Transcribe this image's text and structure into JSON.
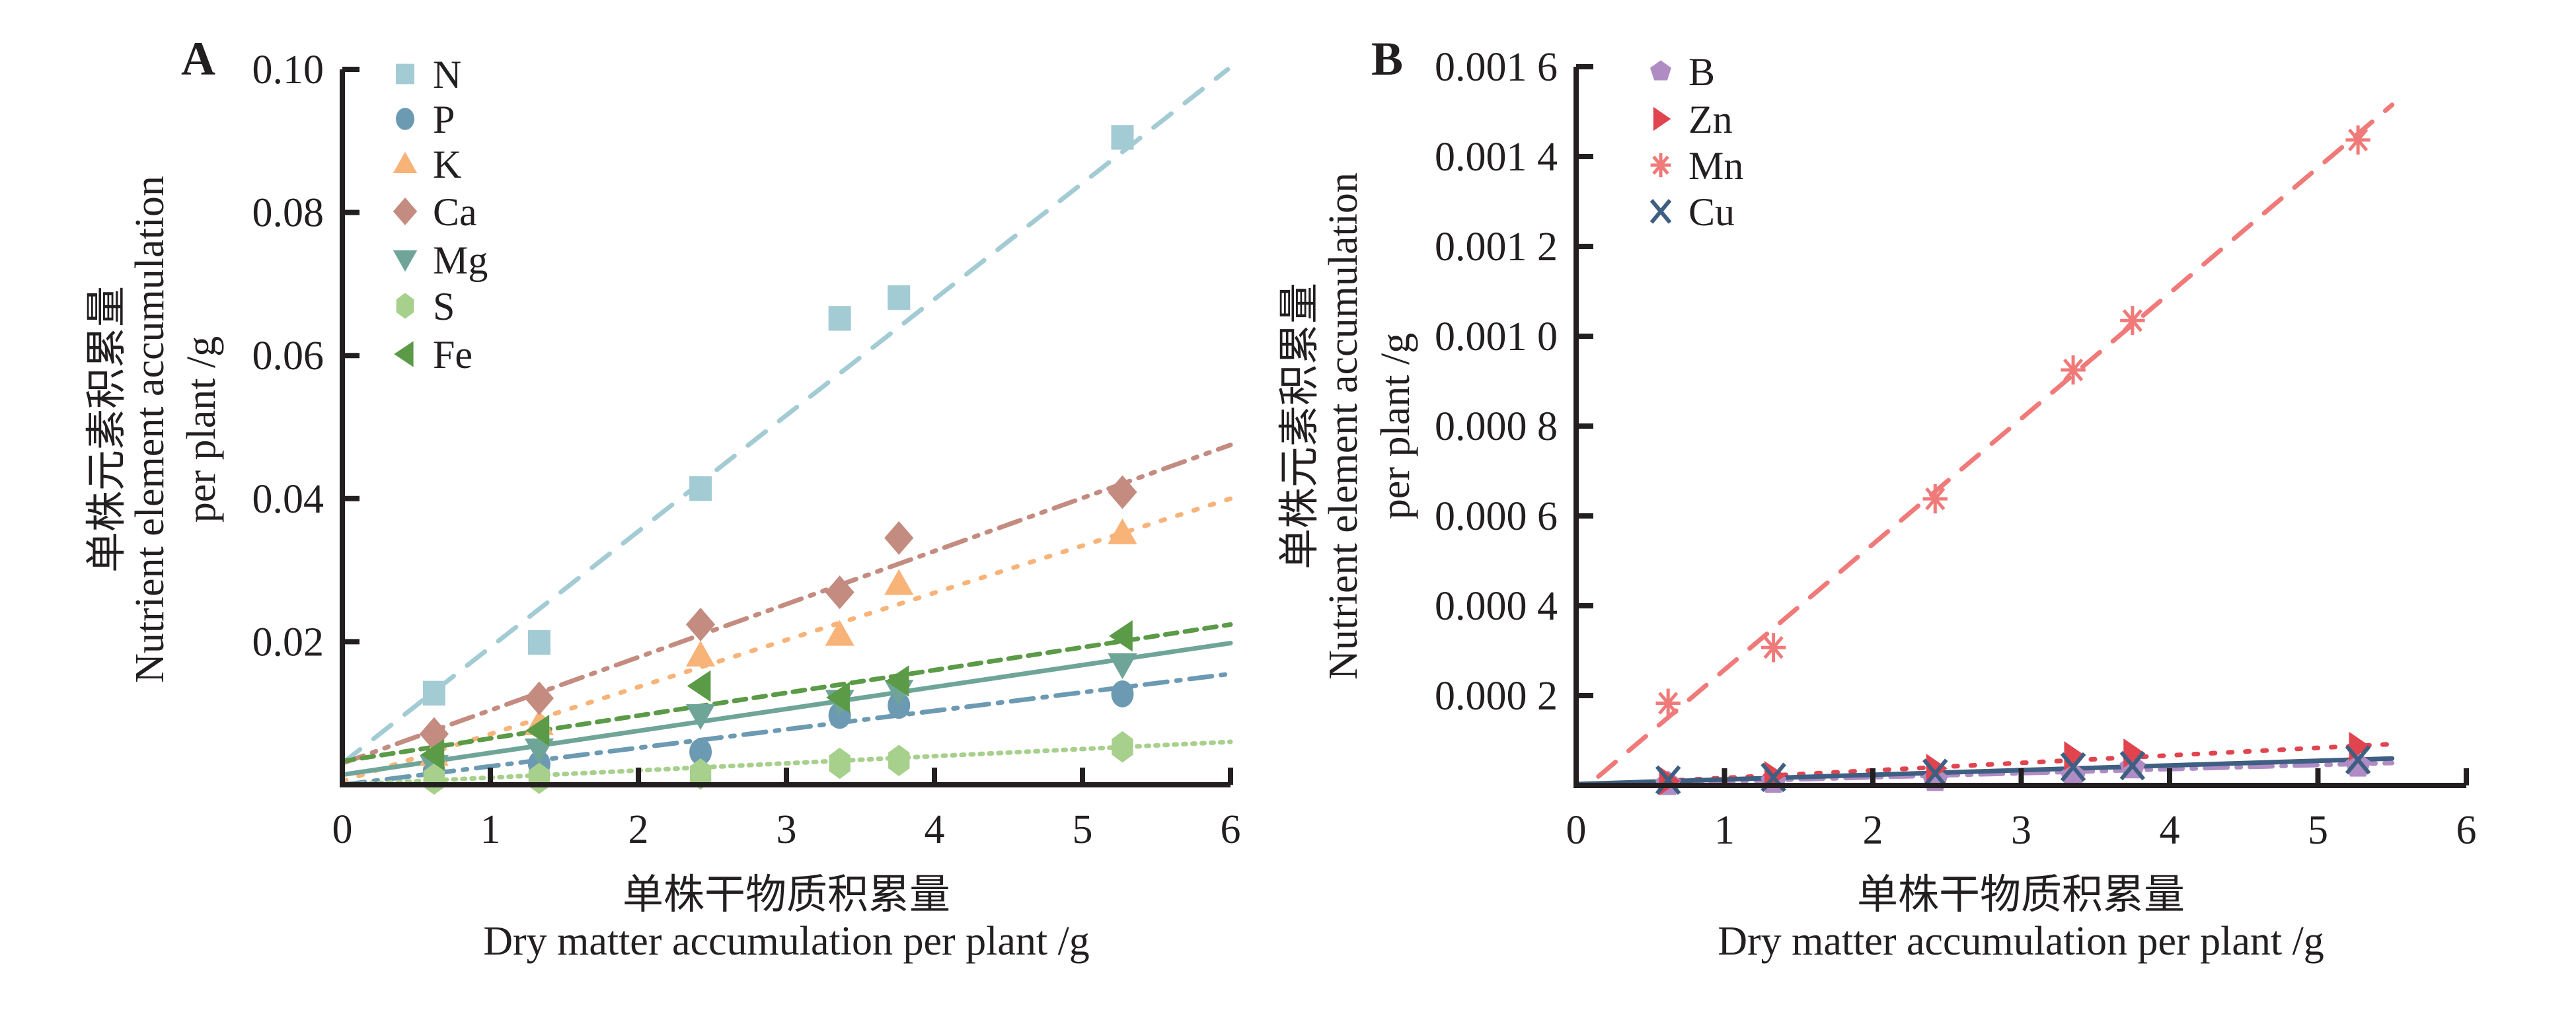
{
  "chart_data": [
    {
      "panel": "A",
      "type": "scatter",
      "xlabel_cn": "单株干物质积累量",
      "xlabel": "Dry matter accumulation per plant /g",
      "ylabel_cn": "单株元素积累量",
      "ylabel_line1": "Nutrient element accumulation",
      "ylabel_line2": "per plant /g",
      "xlim": [
        0,
        6
      ],
      "ylim": [
        0,
        0.1
      ],
      "x_ticks": [
        0,
        1,
        2,
        3,
        4,
        5,
        6
      ],
      "x_tick_labels": [
        "0",
        "1",
        "2",
        "3",
        "4",
        "5",
        "6"
      ],
      "y_ticks": [
        0.02,
        0.04,
        0.06,
        0.08,
        0.1
      ],
      "y_tick_labels": [
        "0.02",
        "0.04",
        "0.06",
        "0.08",
        "0.10"
      ],
      "grid": false,
      "legend_position": "top-left",
      "x": [
        0.62,
        1.33,
        2.42,
        3.36,
        3.76,
        5.27
      ],
      "series": [
        {
          "name": "N",
          "marker": "square",
          "color": "#a3cbd4",
          "line_style": "dashed",
          "values": [
            0.0128,
            0.0199,
            0.0414,
            0.0652,
            0.0681,
            0.0905
          ],
          "fit": [
            0.003,
            0.1003
          ]
        },
        {
          "name": "P",
          "marker": "circle",
          "color": "#6c9ab2",
          "line_style": "dash-dot",
          "values": [
            0.0019,
            0.0029,
            0.0046,
            0.0097,
            0.0111,
            0.0127
          ],
          "fit": [
            -0.0003,
            0.0155
          ]
        },
        {
          "name": "K",
          "marker": "triangle-up",
          "color": "#f8b379",
          "line_style": "dotted",
          "values": [
            0.0042,
            0.0085,
            0.0181,
            0.021,
            0.0281,
            0.0352
          ],
          "fit": [
            0.0005,
            0.04
          ]
        },
        {
          "name": "Ca",
          "marker": "diamond",
          "color": "#c48c80",
          "line_style": "dash-dot-dot",
          "values": [
            0.0071,
            0.0121,
            0.0224,
            0.0269,
            0.0345,
            0.0409
          ],
          "fit": [
            0.003,
            0.0475
          ]
        },
        {
          "name": "Mg",
          "marker": "triangle-down",
          "color": "#6fa598",
          "line_style": "solid",
          "values": [
            0.0026,
            0.0049,
            0.0097,
            0.0117,
            0.0131,
            0.0168
          ],
          "fit": [
            0.0014,
            0.0198
          ]
        },
        {
          "name": "S",
          "marker": "hexagon",
          "color": "#a8d08d",
          "line_style": "dotted-fine",
          "values": [
            0.0008,
            0.0009,
            0.0015,
            0.003,
            0.0034,
            0.0053
          ],
          "fit": [
            0.0,
            0.006
          ]
        },
        {
          "name": "Fe",
          "marker": "triangle-left",
          "color": "#5b9a47",
          "line_style": "short-dashed",
          "values": [
            0.0042,
            0.0076,
            0.0138,
            0.0122,
            0.0145,
            0.0208
          ],
          "fit": [
            0.0033,
            0.0224
          ]
        }
      ]
    },
    {
      "panel": "B",
      "type": "scatter",
      "xlabel_cn": "单株干物质积累量",
      "xlabel": "Dry matter accumulation per plant /g",
      "ylabel_cn": "单株元素积累量",
      "ylabel_line1": "Nutrient element accumulation",
      "ylabel_line2": "per plant /g",
      "xlim": [
        0,
        6
      ],
      "ylim": [
        0,
        0.0016
      ],
      "x_ticks": [
        0,
        1,
        2,
        3,
        4,
        5,
        6
      ],
      "x_tick_labels": [
        "0",
        "1",
        "2",
        "3",
        "4",
        "5",
        "6"
      ],
      "y_ticks": [
        0.0002,
        0.0004,
        0.0006,
        0.0008,
        0.001,
        0.0012,
        0.0014,
        0.0016
      ],
      "y_tick_labels": [
        "0.000 2",
        "0.000 4",
        "0.000 6",
        "0.000 8",
        "0.001 0",
        "0.001 2",
        "0.001 4",
        "0.001 6"
      ],
      "grid": false,
      "legend_position": "top-left",
      "x": [
        0.62,
        1.33,
        2.42,
        3.35,
        3.75,
        5.27
      ],
      "series": [
        {
          "name": "B",
          "marker": "pentagon",
          "color": "#b08cc4",
          "line_style": "dash-dot",
          "values": [
            3e-06,
            8e-06,
            1.2e-05,
            2.1e-05,
            4e-05,
            4.4e-05
          ],
          "fit": [
            -2e-06,
            5e-05
          ],
          "fit_x_end": 5.5
        },
        {
          "name": "Zn",
          "marker": "triangle-right",
          "color": "#e0444f",
          "line_style": "dotted",
          "values": [
            1e-05,
            2.2e-05,
            3.8e-05,
            6.6e-05,
            7.2e-05,
            8.7e-05
          ],
          "fit": [
            0.0,
            9.2e-05
          ],
          "fit_x_end": 5.5
        },
        {
          "name": "Mn",
          "marker": "asterisk",
          "color": "#f07a79",
          "line_style": "dashed",
          "values": [
            0.000183,
            0.000307,
            0.000638,
            0.000925,
            0.001035,
            0.001437
          ],
          "fit": [
            2e-05,
            0.001515
          ],
          "fit_x_start": 0.15,
          "fit_x_end": 5.5
        },
        {
          "name": "Cu",
          "marker": "x",
          "color": "#3f5f82",
          "line_style": "solid",
          "values": [
            1.2e-05,
            1.8e-05,
            2.7e-05,
            4.1e-05,
            4.4e-05,
            5.7e-05
          ],
          "fit": [
            3e-06,
            6e-05
          ],
          "fit_x_end": 5.5
        }
      ]
    }
  ]
}
